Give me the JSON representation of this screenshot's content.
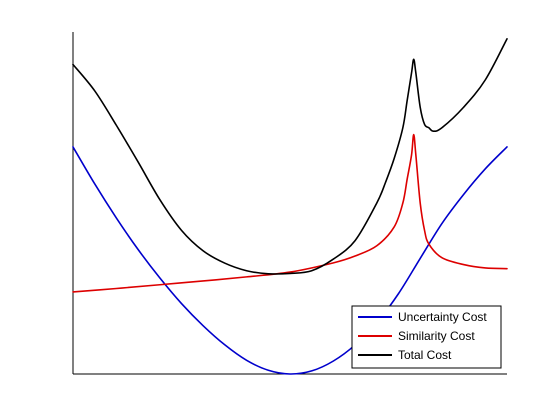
{
  "chart_data": {
    "type": "line",
    "title": "",
    "xlabel": "",
    "ylabel": "",
    "xlim": [
      0,
      1
    ],
    "ylim": [
      0,
      1
    ],
    "grid": false,
    "legend_position": "bottom-right",
    "series": [
      {
        "name": "Uncertainty Cost",
        "color": "#0000cc",
        "x": [
          0,
          0.05,
          0.1,
          0.15,
          0.2,
          0.25,
          0.3,
          0.35,
          0.4,
          0.45,
          0.5,
          0.55,
          0.6,
          0.65,
          0.7,
          0.75,
          0.8,
          0.85,
          0.9,
          0.95,
          1.0
        ],
        "y": [
          0.664,
          0.556,
          0.456,
          0.364,
          0.281,
          0.206,
          0.141,
          0.085,
          0.04,
          0.011,
          0.0,
          0.009,
          0.038,
          0.085,
          0.15,
          0.235,
          0.338,
          0.44,
          0.525,
          0.6,
          0.664
        ]
      },
      {
        "name": "Similarity Cost",
        "color": "#dd0000",
        "x": [
          0,
          0.1,
          0.2,
          0.3,
          0.4,
          0.5,
          0.6,
          0.65,
          0.7,
          0.74,
          0.76,
          0.77,
          0.78,
          0.785,
          0.79,
          0.8,
          0.81,
          0.82,
          0.85,
          0.9,
          0.95,
          1.0
        ],
        "y": [
          0.24,
          0.25,
          0.261,
          0.272,
          0.284,
          0.298,
          0.325,
          0.345,
          0.375,
          0.43,
          0.5,
          0.57,
          0.64,
          0.7,
          0.64,
          0.5,
          0.42,
          0.38,
          0.34,
          0.32,
          0.31,
          0.308
        ]
      },
      {
        "name": "Total Cost",
        "color": "#000000",
        "x": [
          0,
          0.05,
          0.1,
          0.15,
          0.2,
          0.25,
          0.3,
          0.35,
          0.4,
          0.45,
          0.5,
          0.55,
          0.6,
          0.65,
          0.7,
          0.72,
          0.74,
          0.76,
          0.77,
          0.78,
          0.785,
          0.79,
          0.8,
          0.81,
          0.82,
          0.83,
          0.85,
          0.9,
          0.95,
          1.0
        ],
        "y": [
          0.905,
          0.828,
          0.727,
          0.62,
          0.51,
          0.42,
          0.36,
          0.324,
          0.302,
          0.293,
          0.294,
          0.302,
          0.336,
          0.39,
          0.5,
          0.56,
          0.63,
          0.72,
          0.8,
          0.88,
          0.92,
          0.88,
          0.78,
          0.73,
          0.72,
          0.71,
          0.72,
          0.78,
          0.86,
          0.98
        ]
      }
    ]
  }
}
